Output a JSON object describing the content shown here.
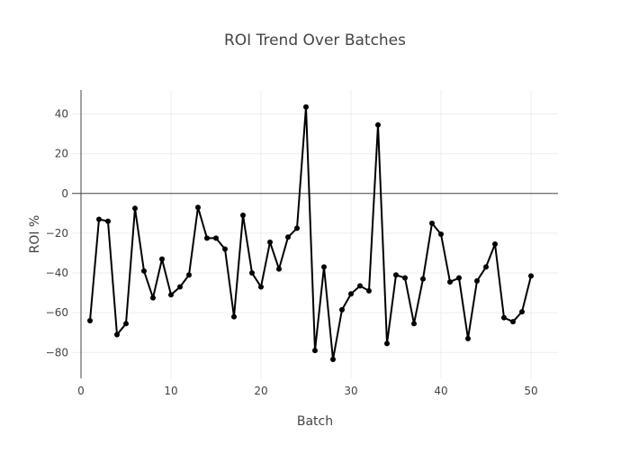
{
  "chart_data": {
    "type": "line",
    "title": "ROI Trend Over Batches",
    "xlabel": "Batch",
    "ylabel": "ROI %",
    "xlim": [
      -1,
      53
    ],
    "ylim": [
      -93,
      52
    ],
    "xticks": [
      0,
      10,
      20,
      30,
      40,
      50
    ],
    "yticks": [
      -80,
      -60,
      -40,
      -20,
      0,
      20,
      40
    ],
    "grid": true,
    "legend": "none",
    "line_color": "#000000",
    "series": [
      {
        "x": [
          1,
          2,
          3,
          4,
          5,
          6,
          7,
          8,
          9,
          10,
          11,
          12,
          13,
          14,
          15,
          16,
          17,
          18,
          19,
          20,
          21,
          22,
          23,
          24,
          25,
          26,
          27,
          28,
          29,
          30,
          31,
          32,
          33,
          34,
          35,
          36,
          37,
          38,
          39,
          40,
          41,
          42,
          43,
          44,
          45,
          46,
          47,
          48,
          49,
          50
        ],
        "values": [
          -64,
          -13,
          -14,
          -71,
          -65.5,
          -7.5,
          -39,
          -52.5,
          -33,
          -51,
          -47,
          -41,
          -7,
          -22.5,
          -22.5,
          -28,
          -62,
          -11,
          -40,
          -47,
          -24.5,
          -38,
          -22,
          -17.5,
          43.5,
          -79,
          -37,
          -83.5,
          -58.5,
          -50.5,
          -46.5,
          -49,
          34.5,
          -75.5,
          -41,
          -42.5,
          -65.5,
          -43,
          -15,
          -20.5,
          -44.5,
          -42.5,
          -73,
          -44,
          -37,
          -25.5,
          -62.5,
          -64.5,
          -59.5,
          -41.5
        ]
      }
    ]
  }
}
